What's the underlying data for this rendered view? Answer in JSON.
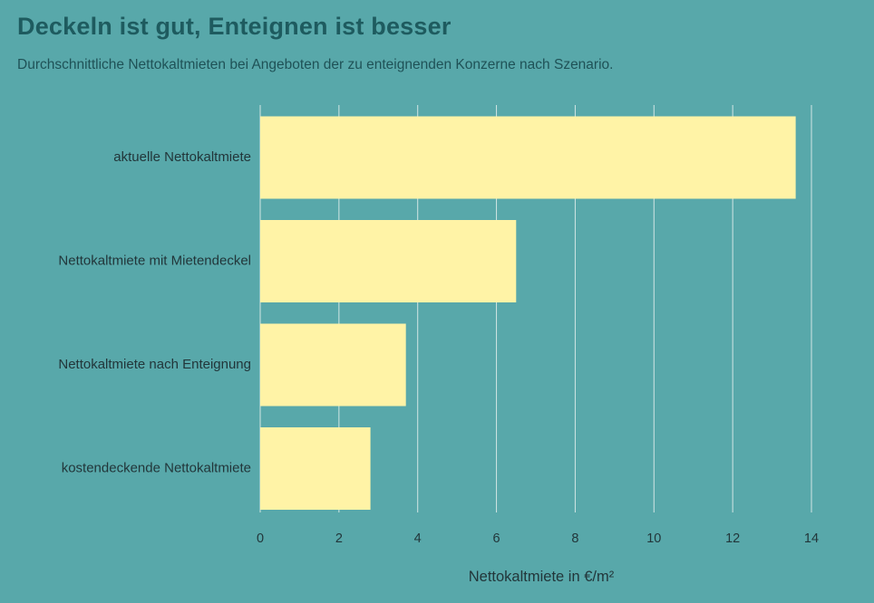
{
  "title": "Deckeln ist gut, Enteignen ist besser",
  "subtitle": "Durchschnittliche Nettokaltmieten bei Angeboten der zu enteignenden Konzerne nach Szenario.",
  "colors": {
    "background": "#58a8aa",
    "bar": "#fff3a6",
    "gridline": "#e8f1ef",
    "title": "#1e5b5f",
    "text": "#22363a"
  },
  "chart_data": {
    "type": "bar",
    "orientation": "horizontal",
    "categories": [
      "aktuelle Nettokaltmiete",
      "Nettokaltmiete mit Mietendeckel",
      "Nettokaltmiete nach Enteignung",
      "kostendeckende Nettokaltmiete"
    ],
    "values": [
      13.6,
      6.5,
      3.7,
      2.8
    ],
    "xlabel": "Nettokaltmiete in €/m²",
    "ylabel": "",
    "xlim": [
      0,
      14
    ],
    "xticks": [
      0,
      2,
      4,
      6,
      8,
      10,
      12,
      14
    ],
    "grid": true,
    "legend": "none"
  }
}
